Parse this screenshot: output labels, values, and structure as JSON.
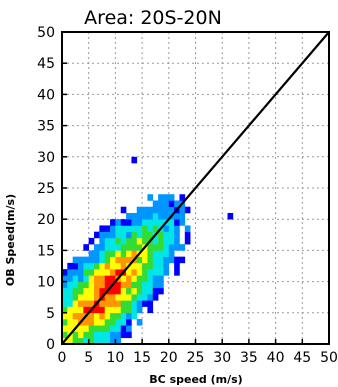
{
  "chart_data": {
    "type": "heatmap",
    "title": "Area: 20S-20N",
    "xlabel": "BC speed (m/s)",
    "ylabel": "OB Speed(m/s)",
    "xlim": [
      0,
      50
    ],
    "ylim": [
      0,
      50
    ],
    "x_ticks": [
      "0",
      "5",
      "10",
      "15",
      "20",
      "25",
      "30",
      "35",
      "40",
      "45",
      "50"
    ],
    "y_ticks": [
      "0",
      "5",
      "10",
      "15",
      "20",
      "25",
      "30",
      "35",
      "40",
      "45",
      "50"
    ],
    "grid": true,
    "reference_line": {
      "from": [
        0,
        0
      ],
      "to": [
        50,
        50
      ],
      "color": "#000000"
    },
    "bin_size": 1,
    "density_core": {
      "center": [
        8,
        8
      ],
      "spread_along_diagonal": 6.5,
      "spread_across_diagonal": 2.3,
      "max_x": 24,
      "max_y": 24
    },
    "outliers": [
      [
        31,
        20
      ],
      [
        13,
        29
      ]
    ],
    "colormap": [
      "#0000ff",
      "#0096ff",
      "#00e6e6",
      "#32dc32",
      "#ffff00",
      "#ff9600",
      "#ff0000"
    ]
  }
}
